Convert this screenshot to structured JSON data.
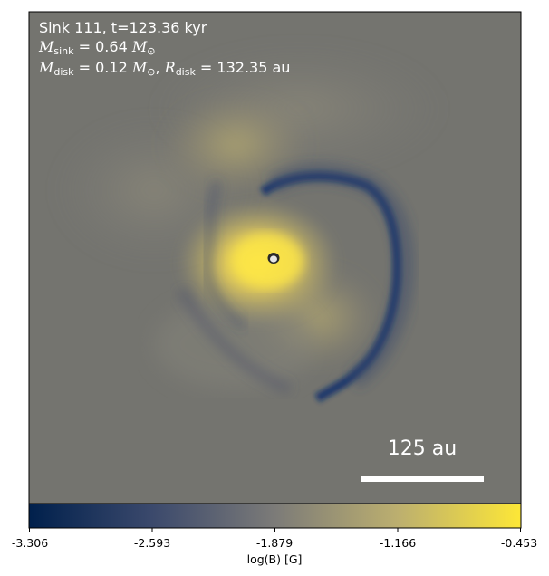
{
  "annotation": {
    "line1": "Sink 111, t=123.36 kyr",
    "m_sink_value": "= 0.64",
    "m_disk_value": "= 0.12",
    "r_disk_value": "= 132.35 au",
    "sink_sub": "sink",
    "disk_sub": "disk",
    "sun_symbol": "⊙",
    "m_symbol": "M",
    "r_symbol": "R",
    "separator": ","
  },
  "scale_bar": {
    "label": "125 au"
  },
  "colorbar": {
    "label": "log(B) [G]",
    "colormap": "cividis",
    "colors": [
      "#00204c",
      "#3b496c",
      "#7c7b78",
      "#bcaf6f",
      "#fde737"
    ],
    "ticks": [
      "-3.306",
      "-2.593",
      "-1.879",
      "-1.166",
      "-0.453"
    ]
  },
  "map": {
    "background_color": "#74746f",
    "low_field_color": "#0e2f6b",
    "high_field_color": "#ffe845",
    "sink_color": "#e6e6e6"
  }
}
